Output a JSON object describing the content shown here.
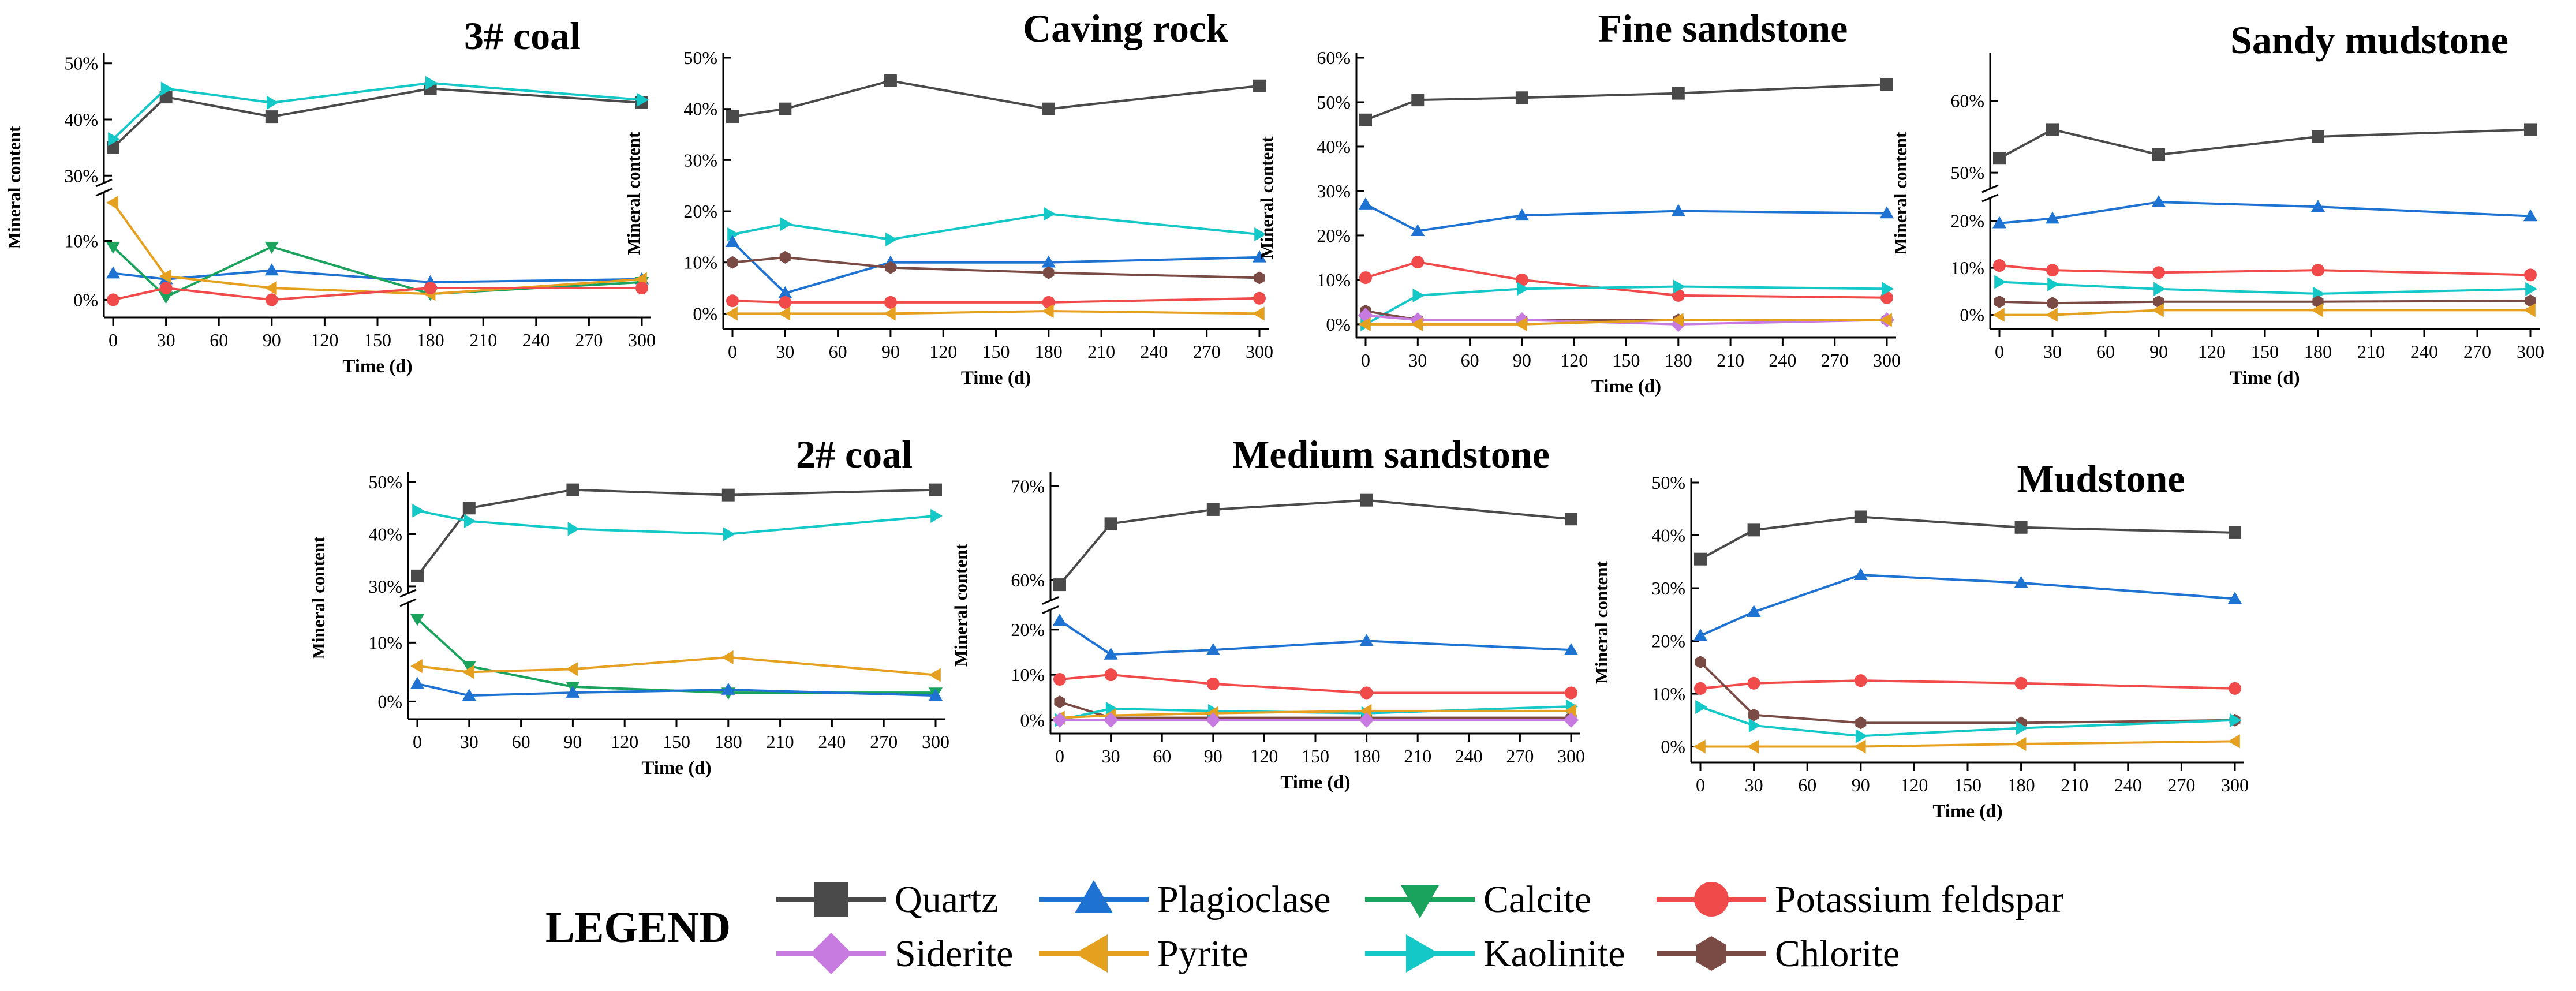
{
  "legend": {
    "title": "LEGEND",
    "items": [
      {
        "name": "Quartz",
        "color": "#4a4a4a",
        "marker": "square"
      },
      {
        "name": "Plagioclase",
        "color": "#1e73d2",
        "marker": "triangle-up"
      },
      {
        "name": "Calcite",
        "color": "#1aa35c",
        "marker": "triangle-down"
      },
      {
        "name": "Potassium feldspar",
        "color": "#f04a4a",
        "marker": "circle"
      },
      {
        "name": "Siderite",
        "color": "#c77ae0",
        "marker": "diamond"
      },
      {
        "name": "Pyrite",
        "color": "#e6a020",
        "marker": "triangle-left"
      },
      {
        "name": "Kaolinite",
        "color": "#14c8c8",
        "marker": "triangle-right"
      },
      {
        "name": "Chlorite",
        "color": "#7a4a44",
        "marker": "hexagon"
      }
    ]
  },
  "chart_data": [
    {
      "type": "line",
      "title": "3# coal",
      "xlabel": "Time (d)",
      "ylabel": "Mineral content",
      "x": [
        0,
        30,
        90,
        180,
        300
      ],
      "xticks": [
        "0",
        "30",
        "60",
        "90",
        "120",
        "150",
        "180",
        "210",
        "240",
        "270",
        "300"
      ],
      "axis_break": true,
      "ylim_lower": [
        -0.03,
        0.18
      ],
      "ylim_upper": [
        0.29,
        0.51
      ],
      "yticks_lower": [
        "0%",
        "10%"
      ],
      "yticks_upper": [
        "30%",
        "40%",
        "50%"
      ],
      "series": [
        {
          "name": "Quartz",
          "values": [
            0.35,
            0.44,
            0.405,
            0.455,
            0.43
          ]
        },
        {
          "name": "Kaolinite",
          "values": [
            0.365,
            0.455,
            0.43,
            0.465,
            0.435
          ]
        },
        {
          "name": "Plagioclase",
          "values": [
            0.045,
            0.035,
            0.05,
            0.03,
            0.035
          ]
        },
        {
          "name": "Calcite",
          "values": [
            0.09,
            0.005,
            0.09,
            0.01,
            0.03
          ]
        },
        {
          "name": "Pyrite",
          "values": [
            0.165,
            0.04,
            0.02,
            0.01,
            0.035
          ]
        },
        {
          "name": "Potassium feldspar",
          "values": [
            0.0,
            0.02,
            0.0,
            0.02,
            0.02
          ]
        }
      ]
    },
    {
      "type": "line",
      "title": "Caving rock",
      "xlabel": "Time (d)",
      "ylabel": "Mineral content",
      "x": [
        0,
        30,
        90,
        180,
        300
      ],
      "xticks": [
        "0",
        "30",
        "60",
        "90",
        "120",
        "150",
        "180",
        "210",
        "240",
        "270",
        "300"
      ],
      "axis_break": false,
      "ylim": [
        -0.03,
        0.5
      ],
      "yticks": [
        "0%",
        "10%",
        "20%",
        "30%",
        "40%",
        "50%"
      ],
      "series": [
        {
          "name": "Quartz",
          "values": [
            0.385,
            0.4,
            0.455,
            0.4,
            0.445
          ]
        },
        {
          "name": "Kaolinite",
          "values": [
            0.155,
            0.175,
            0.145,
            0.195,
            0.155
          ]
        },
        {
          "name": "Plagioclase",
          "values": [
            0.14,
            0.04,
            0.1,
            0.1,
            0.11
          ]
        },
        {
          "name": "Chlorite",
          "values": [
            0.1,
            0.11,
            0.09,
            0.08,
            0.07
          ]
        },
        {
          "name": "Potassium feldspar",
          "values": [
            0.025,
            0.022,
            0.022,
            0.022,
            0.03
          ]
        },
        {
          "name": "Pyrite",
          "values": [
            0.0,
            0.0,
            0.0,
            0.005,
            0.0
          ]
        }
      ]
    },
    {
      "type": "line",
      "title": "Fine sandstone",
      "xlabel": "Time (d)",
      "ylabel": "Mineral content",
      "x": [
        0,
        30,
        90,
        180,
        300
      ],
      "xticks": [
        "0",
        "30",
        "60",
        "90",
        "120",
        "150",
        "180",
        "210",
        "240",
        "270",
        "300"
      ],
      "axis_break": false,
      "ylim": [
        -0.03,
        0.6
      ],
      "yticks": [
        "0%",
        "10%",
        "20%",
        "30%",
        "40%",
        "50%",
        "60%"
      ],
      "series": [
        {
          "name": "Quartz",
          "values": [
            0.46,
            0.505,
            0.51,
            0.52,
            0.54
          ]
        },
        {
          "name": "Plagioclase",
          "values": [
            0.27,
            0.21,
            0.245,
            0.255,
            0.25
          ]
        },
        {
          "name": "Potassium feldspar",
          "values": [
            0.105,
            0.14,
            0.1,
            0.065,
            0.06
          ]
        },
        {
          "name": "Kaolinite",
          "values": [
            0.0,
            0.065,
            0.08,
            0.085,
            0.08
          ]
        },
        {
          "name": "Chlorite",
          "values": [
            0.03,
            0.01,
            0.01,
            0.01,
            0.01
          ]
        },
        {
          "name": "Siderite",
          "values": [
            0.02,
            0.01,
            0.01,
            0.0,
            0.01
          ]
        },
        {
          "name": "Pyrite",
          "values": [
            0.0,
            0.0,
            0.0,
            0.01,
            0.01
          ]
        }
      ]
    },
    {
      "type": "line",
      "title": "Sandy mudstone",
      "xlabel": "Time (d)",
      "ylabel": "Mineral content",
      "x": [
        0,
        30,
        90,
        180,
        300
      ],
      "xticks": [
        "0",
        "30",
        "60",
        "90",
        "120",
        "150",
        "180",
        "210",
        "240",
        "270",
        "300"
      ],
      "axis_break": true,
      "ylim_lower": [
        -0.03,
        0.245
      ],
      "ylim_upper": [
        0.48,
        0.66
      ],
      "yticks_lower": [
        "0%",
        "10%",
        "20%"
      ],
      "yticks_upper": [
        "50%",
        "60%"
      ],
      "series": [
        {
          "name": "Quartz",
          "values": [
            0.52,
            0.56,
            0.525,
            0.55,
            0.56
          ]
        },
        {
          "name": "Plagioclase",
          "values": [
            0.195,
            0.205,
            0.24,
            0.23,
            0.21
          ]
        },
        {
          "name": "Potassium feldspar",
          "values": [
            0.105,
            0.095,
            0.09,
            0.095,
            0.085
          ]
        },
        {
          "name": "Kaolinite",
          "values": [
            0.07,
            0.065,
            0.055,
            0.045,
            0.055
          ]
        },
        {
          "name": "Chlorite",
          "values": [
            0.028,
            0.025,
            0.028,
            0.028,
            0.03
          ]
        },
        {
          "name": "Pyrite",
          "values": [
            0.0,
            0.0,
            0.01,
            0.01,
            0.01
          ]
        }
      ]
    },
    {
      "type": "line",
      "title": "2# coal",
      "xlabel": "Time (d)",
      "ylabel": "Mineral content",
      "x": [
        0,
        30,
        90,
        180,
        300
      ],
      "xticks": [
        "0",
        "30",
        "60",
        "90",
        "120",
        "150",
        "180",
        "210",
        "240",
        "270",
        "300"
      ],
      "axis_break": true,
      "ylim_lower": [
        -0.03,
        0.165
      ],
      "ylim_upper": [
        0.29,
        0.51
      ],
      "yticks_lower": [
        "0%",
        "10%"
      ],
      "yticks_upper": [
        "30%",
        "40%",
        "50%"
      ],
      "series": [
        {
          "name": "Quartz",
          "values": [
            0.32,
            0.45,
            0.485,
            0.475,
            0.485
          ]
        },
        {
          "name": "Kaolinite",
          "values": [
            0.445,
            0.425,
            0.41,
            0.4,
            0.435
          ]
        },
        {
          "name": "Calcite",
          "values": [
            0.14,
            0.06,
            0.025,
            0.015,
            0.015
          ]
        },
        {
          "name": "Pyrite",
          "values": [
            0.06,
            0.05,
            0.055,
            0.075,
            0.045
          ]
        },
        {
          "name": "Plagioclase",
          "values": [
            0.03,
            0.01,
            0.015,
            0.02,
            0.01
          ]
        }
      ]
    },
    {
      "type": "line",
      "title": "Medium sandstone",
      "xlabel": "Time (d)",
      "ylabel": "Mineral content",
      "x": [
        0,
        30,
        90,
        180,
        300
      ],
      "xticks": [
        "0",
        "30",
        "60",
        "90",
        "120",
        "150",
        "180",
        "210",
        "240",
        "270",
        "300"
      ],
      "axis_break": true,
      "ylim_lower": [
        -0.03,
        0.24
      ],
      "ylim_upper": [
        0.58,
        0.71
      ],
      "yticks_lower": [
        "0%",
        "10%",
        "20%"
      ],
      "yticks_upper": [
        "60%",
        "70%"
      ],
      "series": [
        {
          "name": "Quartz",
          "values": [
            0.595,
            0.66,
            0.675,
            0.685,
            0.665
          ]
        },
        {
          "name": "Plagioclase",
          "values": [
            0.22,
            0.145,
            0.155,
            0.175,
            0.155
          ]
        },
        {
          "name": "Potassium feldspar",
          "values": [
            0.09,
            0.1,
            0.08,
            0.06,
            0.06
          ]
        },
        {
          "name": "Chlorite",
          "values": [
            0.04,
            0.005,
            0.005,
            0.005,
            0.005
          ]
        },
        {
          "name": "Kaolinite",
          "values": [
            0.0,
            0.025,
            0.02,
            0.015,
            0.03
          ]
        },
        {
          "name": "Pyrite",
          "values": [
            0.005,
            0.01,
            0.015,
            0.02,
            0.02
          ]
        },
        {
          "name": "Siderite",
          "values": [
            0.0,
            0.0,
            0.0,
            0.0,
            0.0
          ]
        }
      ]
    },
    {
      "type": "line",
      "title": "Mudstone",
      "xlabel": "Time (d)",
      "ylabel": "Mineral content",
      "x": [
        0,
        30,
        90,
        180,
        300
      ],
      "xticks": [
        "0",
        "30",
        "60",
        "90",
        "120",
        "150",
        "180",
        "210",
        "240",
        "270",
        "300"
      ],
      "axis_break": false,
      "ylim": [
        -0.03,
        0.5
      ],
      "yticks": [
        "0%",
        "10%",
        "20%",
        "30%",
        "40%",
        "50%"
      ],
      "series": [
        {
          "name": "Quartz",
          "values": [
            0.355,
            0.41,
            0.435,
            0.415,
            0.405
          ]
        },
        {
          "name": "Plagioclase",
          "values": [
            0.21,
            0.255,
            0.325,
            0.31,
            0.28
          ]
        },
        {
          "name": "Potassium feldspar",
          "values": [
            0.11,
            0.12,
            0.125,
            0.12,
            0.11
          ]
        },
        {
          "name": "Chlorite",
          "values": [
            0.16,
            0.06,
            0.045,
            0.045,
            0.05
          ]
        },
        {
          "name": "Kaolinite",
          "values": [
            0.075,
            0.04,
            0.02,
            0.035,
            0.05
          ]
        },
        {
          "name": "Pyrite",
          "values": [
            0.0,
            0.0,
            0.0,
            0.005,
            0.01
          ]
        }
      ]
    }
  ]
}
